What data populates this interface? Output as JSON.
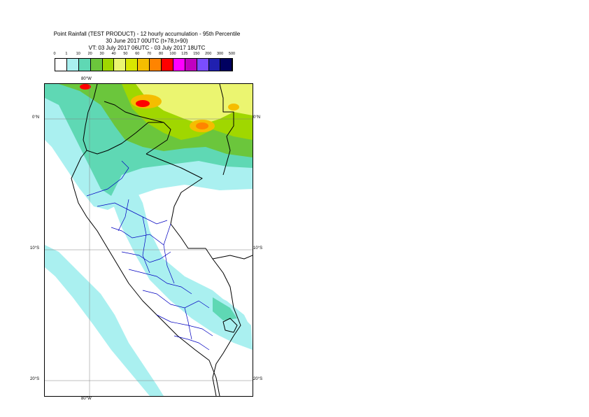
{
  "header": {
    "line1": "Point Rainfall (TEST PRODUCT) - 12 hourly accumulation - 95th Percentile",
    "line2": "30 June 2017 00UTC (t+78,t+90)",
    "line3": "VT: 03 July 2017 06UTC - 03 July 2017 18UTC"
  },
  "legend": {
    "labels": [
      "0",
      "1",
      "10",
      "20",
      "30",
      "40",
      "50",
      "60",
      "70",
      "80",
      "100",
      "125",
      "150",
      "200",
      "300",
      "500"
    ],
    "colors": [
      "#ffffff",
      "#aaf0f0",
      "#5fd8b4",
      "#6bc63c",
      "#a0d700",
      "#ebf570",
      "#d9e600",
      "#f5bd00",
      "#ff8400",
      "#ff0000",
      "#ff00ff",
      "#c000c0",
      "#7a4dff",
      "#2020b0",
      "#000060"
    ]
  },
  "axes": {
    "lon_top": "80°W",
    "lon_bottom": "80°W",
    "lat_labels": [
      "0°N",
      "10°S",
      "20°S"
    ]
  },
  "map_colors": {
    "border_country": "#000000",
    "border_region": "#0000c0",
    "grid": "#808080",
    "ocean": "#ffffff"
  }
}
